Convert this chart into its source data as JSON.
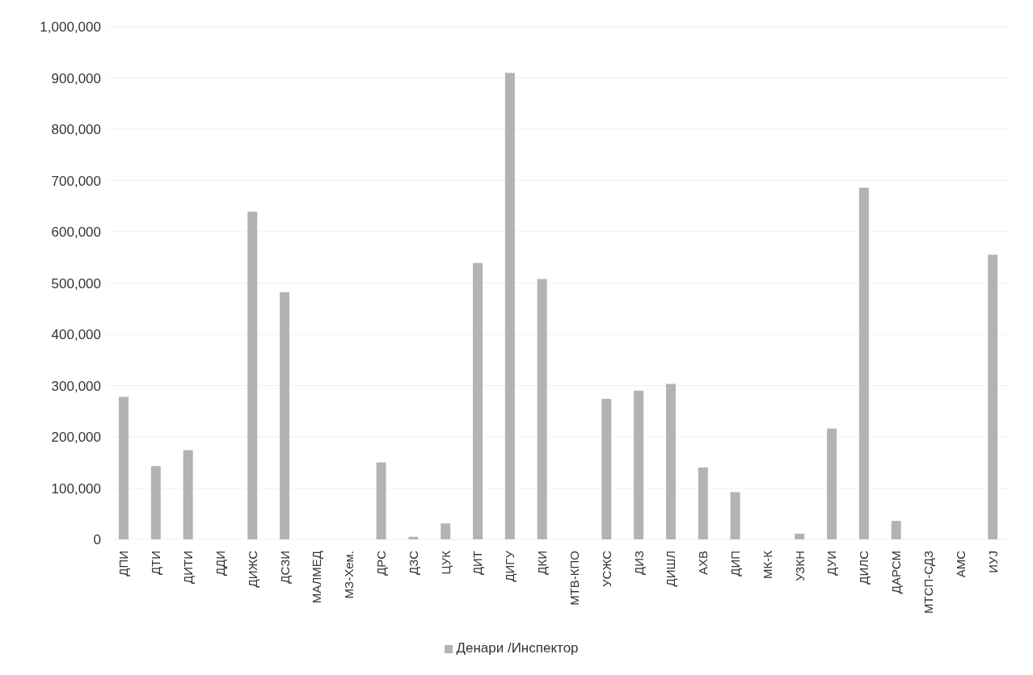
{
  "chart_data": {
    "type": "bar",
    "categories": [
      "ДПИ",
      "ДТИ",
      "ДИТИ",
      "ДДИ",
      "ДИЖС",
      "ДСЗИ",
      "МАЛМЕД",
      "МЗ-Хем.",
      "ДРС",
      "ДЗС",
      "ЦУК",
      "ДИТ",
      "ДИГУ",
      "ДКИ",
      "МТВ-КПО",
      "УСЖС",
      "ДИЗ",
      "ДИШЛ",
      "АХВ",
      "ДИП",
      "МК-К",
      "УЗКН",
      "ДУИ",
      "ДИЛС",
      "ДАРСМ",
      "МТСП-СДЗ",
      "АМС",
      "ИУЈ"
    ],
    "series": [
      {
        "name": "Денари /Инспектор",
        "color": "#b3b3b3",
        "values": [
          278000,
          143000,
          174000,
          0,
          639000,
          482000,
          0,
          0,
          150000,
          5000,
          31000,
          539000,
          910000,
          508000,
          0,
          274000,
          290000,
          303000,
          140000,
          92000,
          0,
          11000,
          216000,
          686000,
          36000,
          0,
          0,
          555000
        ]
      }
    ],
    "ylim": [
      0,
      1000000
    ],
    "yticks": [
      0,
      {
        "value": 100000,
        "label": "100,000"
      },
      {
        "value": 200000,
        "label": "200,000"
      },
      {
        "value": 300000,
        "label": "300,000"
      },
      {
        "value": 400000,
        "label": "400,000"
      },
      {
        "value": 500000,
        "label": "500,000"
      },
      {
        "value": 600000,
        "label": "600,000"
      },
      {
        "value": 700000,
        "label": "700,000"
      },
      {
        "value": 800000,
        "label": "800,000"
      },
      {
        "value": 900000,
        "label": "900,000"
      },
      {
        "value": 1000000,
        "label": "1,000,000"
      }
    ],
    "grid": "y",
    "legend": "bottom"
  }
}
